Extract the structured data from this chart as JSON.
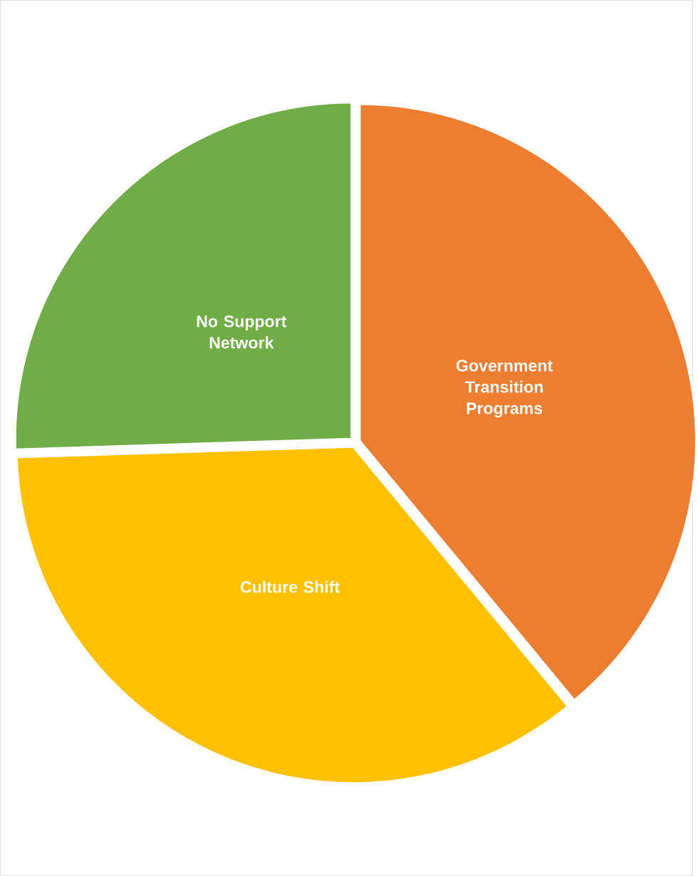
{
  "chart_data": {
    "type": "pie",
    "categories": [
      "Government Transition Programs",
      "Culture Shift",
      "No Support Network"
    ],
    "values": [
      39,
      35.5,
      25.5
    ],
    "colors": [
      "#ed7d31",
      "#ffc000",
      "#70ad47"
    ]
  }
}
